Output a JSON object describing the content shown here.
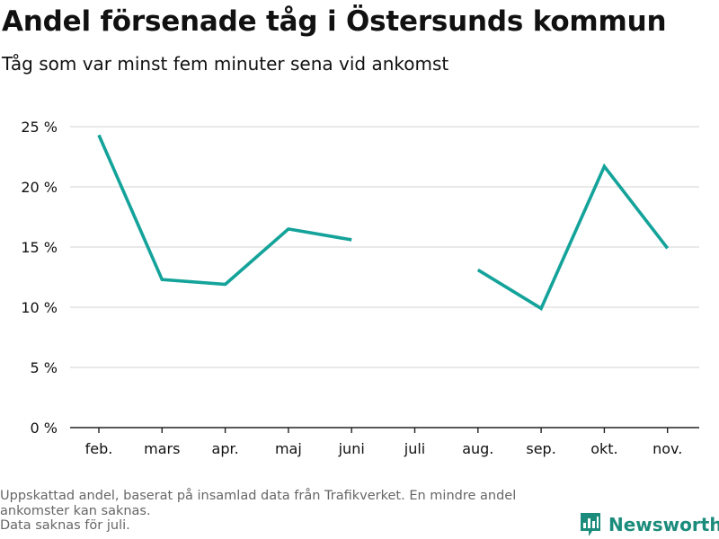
{
  "title": "Andel försenade tåg i Östersunds kommun",
  "subtitle": "Tåg som var minst fem minuter sena vid ankomst",
  "footnote": {
    "lines": [
      "Uppskattad andel, baserat på insamlad data från Trafikverket. En mindre andel",
      "ankomster kan saknas.",
      "Data saknas för juli."
    ]
  },
  "logo": {
    "name": "Newsworthy",
    "icon": "bar-chart-logo-icon"
  },
  "colors": {
    "line": "#14a39a",
    "grid": "#dcdcdc",
    "axis": "#222222",
    "brand": "#1b8c7c"
  },
  "chart_data": {
    "type": "line",
    "categories": [
      "feb.",
      "mars",
      "apr.",
      "maj",
      "juni",
      "juli",
      "aug.",
      "sep.",
      "okt.",
      "nov."
    ],
    "series": [
      {
        "values": [
          24.3,
          12.3,
          11.9,
          16.5,
          15.6,
          null,
          13.1,
          9.9,
          21.7,
          14.9
        ]
      }
    ],
    "yticks": [
      0,
      5,
      10,
      15,
      20,
      25
    ],
    "ytick_labels": [
      "0 %",
      "5 %",
      "10 %",
      "15 %",
      "20 %",
      "25 %"
    ],
    "ylim": [
      0,
      25
    ],
    "grid": true,
    "xlabel": "",
    "ylabel": ""
  }
}
